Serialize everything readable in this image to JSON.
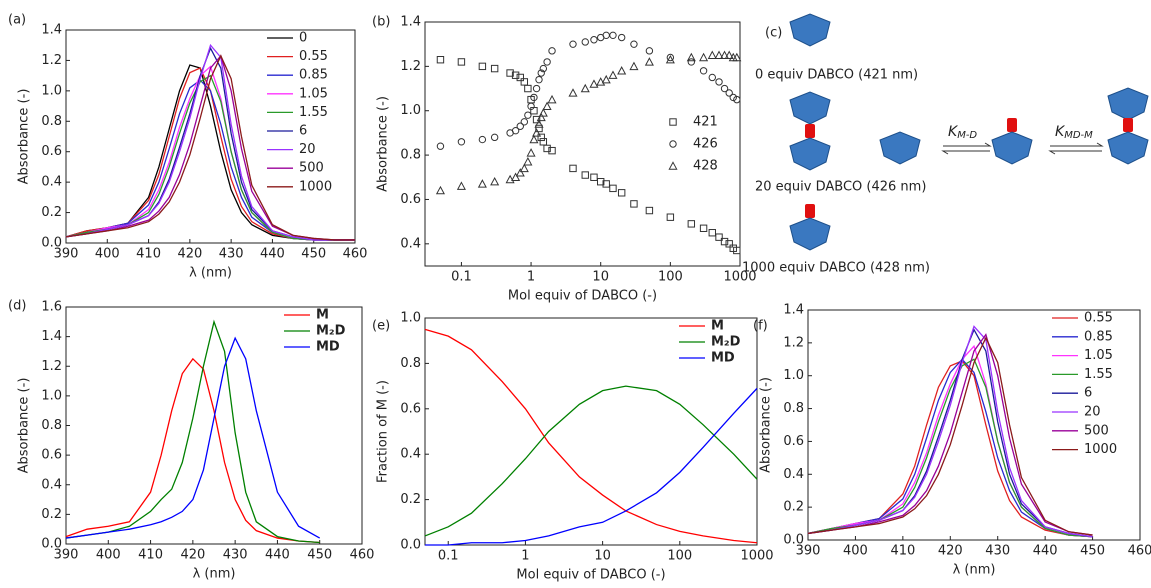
{
  "chart_data": [
    {
      "type": "line",
      "label": "(a)",
      "x_label": "λ (nm)",
      "y_label": "Absorbance (-)",
      "legend": "upper right",
      "xlim": [
        390,
        460
      ],
      "xticks": [
        390,
        400,
        410,
        420,
        430,
        440,
        450,
        460
      ],
      "ylim": [
        0,
        1.4
      ],
      "yticks": [
        {
          "value": 0,
          "label": "0.0"
        },
        0.2,
        0.4,
        0.6,
        0.8,
        {
          "value": 1,
          "label": "1.0"
        },
        1.2,
        1.4
      ],
      "x": [
        390,
        395,
        400,
        405,
        410,
        412.5,
        415,
        417.5,
        420,
        422.5,
        425,
        427.5,
        430,
        432.5,
        435,
        440,
        445,
        450,
        455,
        460
      ],
      "series": [
        {
          "name": "0",
          "color": "#000000",
          "values": [
            0.04,
            0.08,
            0.1,
            0.13,
            0.3,
            0.5,
            0.75,
            1.0,
            1.17,
            1.15,
            0.9,
            0.6,
            0.35,
            0.2,
            0.12,
            0.05,
            0.03,
            0.02,
            0.02,
            0.02
          ]
        },
        {
          "name": "0.55",
          "color": "#e02020",
          "values": [
            0.04,
            0.08,
            0.1,
            0.13,
            0.28,
            0.45,
            0.7,
            0.95,
            1.12,
            1.15,
            1.0,
            0.7,
            0.42,
            0.24,
            0.14,
            0.06,
            0.03,
            0.02,
            0.02,
            0.02
          ]
        },
        {
          "name": "0.85",
          "color": "#2a2ad0",
          "values": [
            0.04,
            0.07,
            0.1,
            0.13,
            0.25,
            0.4,
            0.62,
            0.85,
            1.02,
            1.07,
            1.0,
            0.78,
            0.5,
            0.3,
            0.17,
            0.07,
            0.03,
            0.02,
            0.02,
            0.02
          ]
        },
        {
          "name": "1.05",
          "color": "#ff33ff",
          "values": [
            0.04,
            0.07,
            0.1,
            0.12,
            0.22,
            0.35,
            0.53,
            0.76,
            0.95,
            1.1,
            1.16,
            0.95,
            0.6,
            0.35,
            0.2,
            0.07,
            0.03,
            0.02,
            0.02,
            0.02
          ]
        },
        {
          "name": "1.55",
          "color": "#2a9a2a",
          "values": [
            0.04,
            0.07,
            0.09,
            0.12,
            0.2,
            0.32,
            0.5,
            0.72,
            0.92,
            1.06,
            1.1,
            0.93,
            0.6,
            0.35,
            0.2,
            0.07,
            0.03,
            0.02,
            0.02,
            0.02
          ]
        },
        {
          "name": "6",
          "color": "#1a1a9a",
          "values": [
            0.04,
            0.06,
            0.09,
            0.12,
            0.18,
            0.27,
            0.42,
            0.63,
            0.85,
            1.1,
            1.28,
            1.15,
            0.72,
            0.4,
            0.22,
            0.08,
            0.04,
            0.02,
            0.02,
            0.02
          ]
        },
        {
          "name": "20",
          "color": "#9933ff",
          "values": [
            0.04,
            0.06,
            0.09,
            0.12,
            0.18,
            0.26,
            0.4,
            0.6,
            0.82,
            1.08,
            1.3,
            1.22,
            0.78,
            0.44,
            0.24,
            0.08,
            0.04,
            0.02,
            0.02,
            0.02
          ]
        },
        {
          "name": "500",
          "color": "#990099",
          "values": [
            0.04,
            0.06,
            0.08,
            0.11,
            0.15,
            0.21,
            0.3,
            0.45,
            0.65,
            0.9,
            1.15,
            1.23,
            1.0,
            0.62,
            0.34,
            0.11,
            0.05,
            0.03,
            0.02,
            0.02
          ]
        },
        {
          "name": "1000",
          "color": "#8b1a1a",
          "values": [
            0.04,
            0.06,
            0.08,
            0.1,
            0.14,
            0.19,
            0.27,
            0.4,
            0.58,
            0.82,
            1.08,
            1.23,
            1.08,
            0.7,
            0.38,
            0.12,
            0.05,
            0.03,
            0.02,
            0.02
          ]
        }
      ]
    },
    {
      "type": "scatter",
      "label": "(b)",
      "x_label": "Mol equiv of DABCO (-)",
      "y_label": "Absorbance (-)",
      "legend": "center right",
      "xscale": "log",
      "xlim": [
        0.03,
        1000
      ],
      "xticks": [
        0.1,
        1,
        10,
        100,
        1000
      ],
      "ylim": [
        0.3,
        1.4
      ],
      "yticks": [
        0.4,
        0.6,
        0.8,
        {
          "value": 1,
          "label": "1.0"
        },
        1.2,
        1.4
      ],
      "x": [
        0.05,
        0.1,
        0.2,
        0.3,
        0.5,
        0.6,
        0.7,
        0.8,
        0.9,
        1,
        1.1,
        1.2,
        1.3,
        1.4,
        1.5,
        1.7,
        2,
        4,
        6,
        8,
        10,
        12,
        15,
        20,
        30,
        50,
        100,
        200,
        300,
        400,
        500,
        600,
        700,
        800,
        900
      ],
      "series": [
        {
          "name": "421",
          "color": "#333333",
          "marker": "square",
          "values": [
            1.23,
            1.22,
            1.2,
            1.19,
            1.17,
            1.16,
            1.15,
            1.13,
            1.1,
            1.05,
            1.0,
            0.96,
            0.92,
            0.88,
            0.86,
            0.83,
            0.82,
            0.74,
            0.71,
            0.7,
            0.68,
            0.67,
            0.65,
            0.63,
            0.58,
            0.55,
            0.52,
            0.49,
            0.47,
            0.45,
            0.43,
            0.41,
            0.4,
            0.38,
            0.37
          ]
        },
        {
          "name": "426",
          "color": "#333333",
          "marker": "circle",
          "values": [
            0.84,
            0.86,
            0.87,
            0.88,
            0.9,
            0.91,
            0.93,
            0.95,
            0.98,
            1.02,
            1.06,
            1.1,
            1.14,
            1.17,
            1.19,
            1.22,
            1.27,
            1.3,
            1.31,
            1.32,
            1.33,
            1.34,
            1.34,
            1.33,
            1.3,
            1.27,
            1.24,
            1.22,
            1.18,
            1.15,
            1.13,
            1.1,
            1.08,
            1.06,
            1.05
          ]
        },
        {
          "name": "428",
          "color": "#333333",
          "marker": "triangle",
          "values": [
            0.64,
            0.66,
            0.67,
            0.68,
            0.69,
            0.7,
            0.72,
            0.74,
            0.77,
            0.81,
            0.87,
            0.9,
            0.94,
            0.97,
            0.99,
            1.02,
            1.05,
            1.08,
            1.1,
            1.12,
            1.13,
            1.14,
            1.16,
            1.18,
            1.2,
            1.22,
            1.23,
            1.24,
            1.24,
            1.25,
            1.25,
            1.25,
            1.25,
            1.24,
            1.24
          ]
        }
      ]
    },
    {
      "type": "line",
      "label": "(d)",
      "x_label": "λ (nm)",
      "y_label": "Absorbance (-)",
      "legend": "upper right",
      "xlim": [
        390,
        460
      ],
      "xticks": [
        390,
        400,
        410,
        420,
        430,
        440,
        450,
        460
      ],
      "ylim": [
        0,
        1.6
      ],
      "yticks": [
        {
          "value": 0,
          "label": "0.0"
        },
        0.2,
        0.4,
        0.6,
        0.8,
        {
          "value": 1,
          "label": "1.0"
        },
        1.2,
        1.4,
        1.6
      ],
      "x": [
        390,
        395,
        400,
        405,
        410,
        412.5,
        415,
        417.5,
        420,
        422.5,
        425,
        427.5,
        430,
        432.5,
        435,
        440,
        445,
        450
      ],
      "series": [
        {
          "name": "M",
          "color": "#ff0000",
          "values": [
            0.05,
            0.1,
            0.12,
            0.15,
            0.35,
            0.6,
            0.9,
            1.15,
            1.25,
            1.18,
            0.9,
            0.55,
            0.3,
            0.16,
            0.09,
            0.04,
            0.02,
            0.01
          ]
        },
        {
          "name": "M₂D",
          "color": "#008000",
          "values": [
            0.04,
            0.06,
            0.08,
            0.12,
            0.22,
            0.3,
            0.37,
            0.55,
            0.85,
            1.2,
            1.5,
            1.3,
            0.75,
            0.35,
            0.15,
            0.05,
            0.02,
            0.01
          ]
        },
        {
          "name": "MD",
          "color": "#0000ff",
          "values": [
            0.04,
            0.06,
            0.08,
            0.1,
            0.13,
            0.15,
            0.18,
            0.22,
            0.3,
            0.5,
            0.85,
            1.2,
            1.39,
            1.25,
            0.9,
            0.35,
            0.12,
            0.04
          ]
        }
      ]
    },
    {
      "type": "line",
      "label": "(e)",
      "x_label": "Mol equiv of DABCO (-)",
      "y_label": "Fraction of M (-)",
      "legend": "upper right",
      "xscale": "log",
      "xlim": [
        0.05,
        1000
      ],
      "xticks": [
        0.1,
        1,
        10,
        100,
        1000
      ],
      "ylim": [
        0,
        1
      ],
      "yticks": [
        {
          "value": 0,
          "label": "0.0"
        },
        0.2,
        0.4,
        0.6,
        0.8,
        {
          "value": 1,
          "label": "1.0"
        }
      ],
      "x": [
        0.05,
        0.1,
        0.2,
        0.5,
        1,
        2,
        5,
        10,
        20,
        50,
        100,
        200,
        500,
        1000
      ],
      "series": [
        {
          "name": "M",
          "color": "#ff0000",
          "values": [
            0.95,
            0.92,
            0.86,
            0.72,
            0.6,
            0.45,
            0.3,
            0.22,
            0.15,
            0.09,
            0.06,
            0.04,
            0.02,
            0.01
          ]
        },
        {
          "name": "M₂D",
          "color": "#008000",
          "values": [
            0.04,
            0.08,
            0.14,
            0.27,
            0.38,
            0.5,
            0.62,
            0.68,
            0.7,
            0.68,
            0.62,
            0.53,
            0.4,
            0.29
          ]
        },
        {
          "name": "MD",
          "color": "#0000ff",
          "values": [
            0,
            0,
            0.01,
            0.01,
            0.02,
            0.04,
            0.08,
            0.1,
            0.15,
            0.23,
            0.32,
            0.43,
            0.58,
            0.69
          ]
        }
      ]
    },
    {
      "type": "line",
      "label": "(f)",
      "x_label": "λ (nm)",
      "y_label": "Absorbance (-)",
      "legend": "upper right",
      "xlim": [
        390,
        460
      ],
      "xticks": [
        390,
        400,
        410,
        420,
        430,
        440,
        450,
        460
      ],
      "ylim": [
        0,
        1.4
      ],
      "yticks": [
        {
          "value": 0,
          "label": "0.0"
        },
        0.2,
        0.4,
        0.6,
        0.8,
        {
          "value": 1,
          "label": "1.0"
        },
        1.2,
        1.4
      ],
      "x": [
        390,
        395,
        400,
        405,
        410,
        412.5,
        415,
        417.5,
        420,
        422.5,
        425,
        427.5,
        430,
        432.5,
        435,
        440,
        445,
        450
      ],
      "series": [
        {
          "name": "0.55",
          "color": "#e02020",
          "values": [
            0.04,
            0.07,
            0.1,
            0.13,
            0.28,
            0.45,
            0.7,
            0.93,
            1.06,
            1.09,
            1.0,
            0.7,
            0.42,
            0.24,
            0.14,
            0.06,
            0.03,
            0.02
          ]
        },
        {
          "name": "0.85",
          "color": "#2a2ad0",
          "values": [
            0.04,
            0.07,
            0.1,
            0.13,
            0.25,
            0.4,
            0.62,
            0.85,
            1.02,
            1.1,
            1.02,
            0.78,
            0.5,
            0.3,
            0.17,
            0.07,
            0.03,
            0.02
          ]
        },
        {
          "name": "1.05",
          "color": "#ff33ff",
          "values": [
            0.04,
            0.07,
            0.1,
            0.12,
            0.22,
            0.35,
            0.53,
            0.76,
            0.95,
            1.1,
            1.18,
            0.95,
            0.6,
            0.35,
            0.2,
            0.07,
            0.03,
            0.02
          ]
        },
        {
          "name": "1.55",
          "color": "#2a9a2a",
          "values": [
            0.04,
            0.07,
            0.09,
            0.12,
            0.2,
            0.32,
            0.5,
            0.72,
            0.92,
            1.06,
            1.1,
            0.93,
            0.6,
            0.35,
            0.2,
            0.07,
            0.03,
            0.02
          ]
        },
        {
          "name": "6",
          "color": "#1a1a9a",
          "values": [
            0.04,
            0.06,
            0.09,
            0.12,
            0.18,
            0.27,
            0.42,
            0.63,
            0.85,
            1.1,
            1.28,
            1.15,
            0.72,
            0.4,
            0.22,
            0.08,
            0.04,
            0.02
          ]
        },
        {
          "name": "20",
          "color": "#9933ff",
          "values": [
            0.04,
            0.06,
            0.09,
            0.12,
            0.18,
            0.26,
            0.4,
            0.6,
            0.82,
            1.08,
            1.3,
            1.22,
            0.78,
            0.44,
            0.24,
            0.08,
            0.04,
            0.02
          ]
        },
        {
          "name": "500",
          "color": "#990099",
          "values": [
            0.04,
            0.06,
            0.08,
            0.11,
            0.15,
            0.21,
            0.3,
            0.45,
            0.65,
            0.9,
            1.15,
            1.25,
            1.0,
            0.62,
            0.34,
            0.11,
            0.05,
            0.03
          ]
        },
        {
          "name": "1000",
          "color": "#8b1a1a",
          "values": [
            0.04,
            0.06,
            0.08,
            0.1,
            0.14,
            0.19,
            0.27,
            0.4,
            0.58,
            0.82,
            1.08,
            1.23,
            1.08,
            0.7,
            0.38,
            0.12,
            0.05,
            0.03
          ]
        }
      ]
    }
  ],
  "diagram": {
    "label": "(c)",
    "states": [
      "0 equiv DABCO (421 nm)",
      "20 equiv DABCO (426 nm)",
      "1000 equiv DABCO (428 nm)"
    ],
    "constants": [
      {
        "symbol": "K",
        "subscript": "M-D"
      },
      {
        "symbol": "K",
        "subscript": "MD-M"
      }
    ]
  }
}
